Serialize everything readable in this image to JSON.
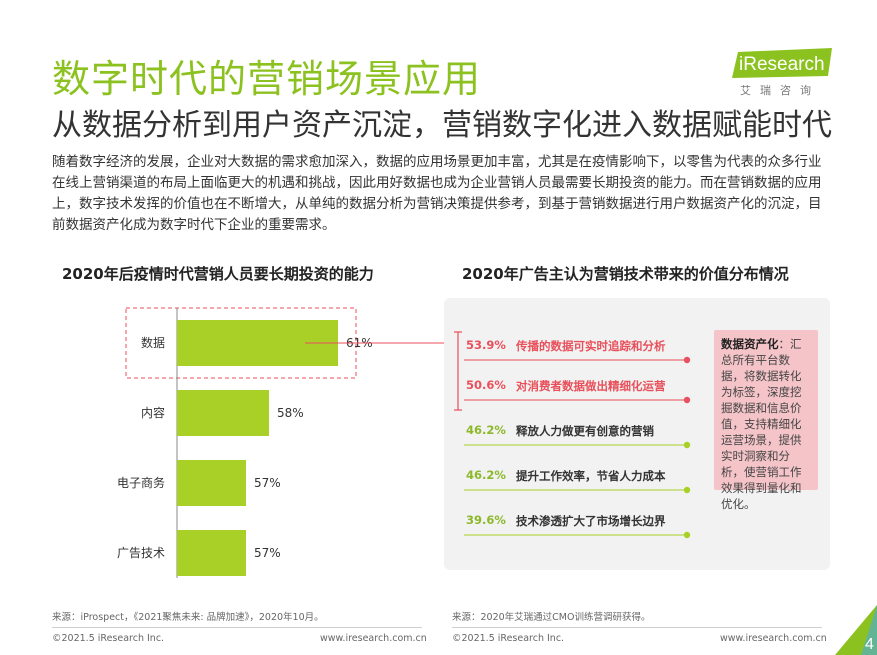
{
  "header": {
    "title": "数字时代的营销场景应用",
    "subtitle": "从数据分析到用户资产沉淀，营销数字化进入数据赋能时代"
  },
  "logo": {
    "brand": "iResearch",
    "cn": "艾瑞咨询",
    "color": "#8cc21f"
  },
  "intro": "随着数字经济的发展，企业对大数据的需求愈加深入，数据的应用场景更加丰富，尤其是在疫情影响下，以零售为代表的众多行业在线上营销渠道的布局上面临更大的机遇和挑战，因此用好数据也成为企业营销人员最需要长期投资的能力。而在营销数据的应用上，数字技术发挥的价值也在不断增大，从单纯的数据分析为营销决策提供参考，到基于营销数据进行用户数据资产化的沉淀，目前数据资产化成为数字时代下企业的重要需求。",
  "left_section": {
    "title": "2020年后疫情时代营销人员要长期投资的能力"
  },
  "right_section": {
    "title": "2020年广告主认为营销技术带来的价值分布情况"
  },
  "chart_data": {
    "type": "bar",
    "orientation": "horizontal",
    "title": "2020年后疫情时代营销人员要长期投资的能力",
    "categories": [
      "数据",
      "内容",
      "电子商务",
      "广告技术"
    ],
    "values": [
      61,
      58,
      57,
      57
    ],
    "value_labels": [
      "61%",
      "58%",
      "57%",
      "57%"
    ],
    "xlim": [
      54,
      64
    ],
    "bar_color": "#a8d026",
    "highlight": "数据",
    "grid": false
  },
  "values_list": [
    {
      "pct": "53.9%",
      "label": "传播的数据可实时追踪和分析",
      "highlight": true
    },
    {
      "pct": "50.6%",
      "label": "对消费者数据做出精细化运营",
      "highlight": true
    },
    {
      "pct": "46.2%",
      "label": "释放人力做更有创意的营销",
      "highlight": false
    },
    {
      "pct": "46.2%",
      "label": "提升工作效率，节省人力成本",
      "highlight": false
    },
    {
      "pct": "39.6%",
      "label": "技术渗透扩大了市场增长边界",
      "highlight": false
    }
  ],
  "note": {
    "bold": "数据资产化",
    "text": "：汇总所有平台数据，将数据转化为标签，深度挖掘数据和信息价值，支持精细化运营场景，提供实时洞察和分析，使营销工作效果得到量化和优化。"
  },
  "footer": {
    "source_left": "来源：iProspect，《2021聚焦未来: 品牌加速》，2020年10月。",
    "source_right": "来源：2020年艾瑞通过CMO训练营调研获得。",
    "copyright_left": "©2021.5 iResearch Inc.",
    "url_left": "www.iresearch.com.cn",
    "copyright_right": "©2021.5 iResearch Inc.",
    "url_right": "www.iresearch.com.cn",
    "page": "4"
  },
  "colors": {
    "green": "#8cc21f",
    "red": "#e8505b",
    "pink": "#f4c4c8",
    "panel": "#f2f2f2"
  }
}
